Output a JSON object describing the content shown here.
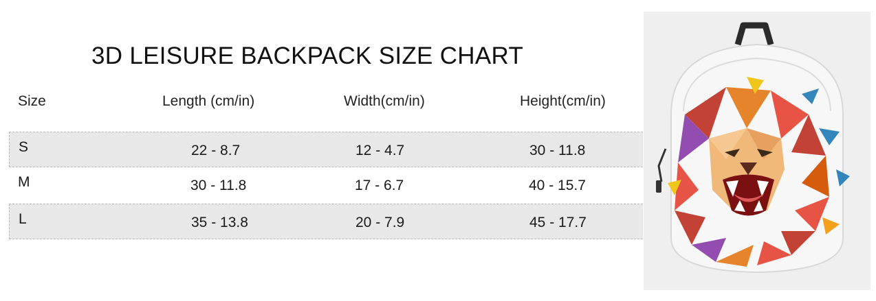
{
  "title": "3D LEISURE BACKPACK SIZE CHART",
  "table": {
    "headers": [
      "Size",
      "Length (cm/in)",
      "Width(cm/in)",
      "Height(cm/in)"
    ],
    "rows": [
      {
        "size": "S",
        "length": "22 - 8.7",
        "width": "12 - 4.7",
        "height": "30 - 11.8"
      },
      {
        "size": "M",
        "length": "30 - 11.8",
        "width": "17 - 6.7",
        "height": "40 - 15.7"
      },
      {
        "size": "L",
        "length": "35 - 13.8",
        "width": "20 - 7.9",
        "height": "45 - 17.7"
      }
    ]
  },
  "product_image": {
    "icon": "backpack-lion-illustration",
    "background_color": "#efefef",
    "bag_color": "#f7f7f7",
    "accent_colors": [
      "#c0392b",
      "#e74c3c",
      "#e67e22",
      "#f1c40f",
      "#8e44ad",
      "#2980b9"
    ]
  }
}
